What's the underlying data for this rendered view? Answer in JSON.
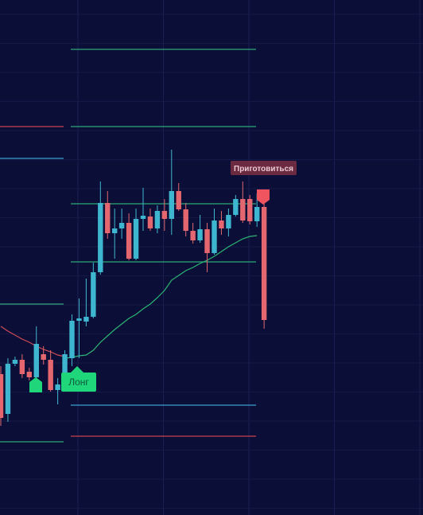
{
  "chart_data": {
    "type": "candlestick",
    "ylim": [
      0,
      647
    ],
    "up_color": "#3fb6cf",
    "down_color": "#e4676f",
    "open": [
      177,
      127,
      190,
      195,
      180,
      173,
      202,
      195,
      157,
      162,
      197,
      244,
      243,
      249,
      305,
      392,
      354,
      360,
      367,
      322,
      372,
      375,
      360,
      382,
      372,
      407,
      384,
      357,
      345,
      359,
      329,
      370,
      360,
      377,
      397,
      397,
      369,
      387
    ],
    "high": [
      187,
      197,
      199,
      202,
      185,
      237,
      212,
      207,
      172,
      207,
      252,
      272,
      297,
      317,
      419,
      407,
      385,
      385,
      379,
      385,
      411,
      385,
      389,
      397,
      459,
      417,
      392,
      367,
      377,
      367,
      385,
      382,
      385,
      402,
      419,
      402,
      404,
      392
    ],
    "low": [
      112,
      117,
      187,
      172,
      169,
      167,
      189,
      155,
      139,
      157,
      187,
      197,
      237,
      247,
      302,
      347,
      322,
      347,
      320,
      320,
      357,
      357,
      354,
      357,
      352,
      382,
      350,
      341,
      342,
      305,
      327,
      352,
      350,
      375,
      367,
      365,
      362,
      234
    ],
    "close": [
      122,
      190,
      195,
      177,
      173,
      215,
      195,
      157,
      164,
      202,
      244,
      247,
      249,
      305,
      392,
      354,
      360,
      367,
      322,
      372,
      376,
      360,
      382,
      372,
      407,
      384,
      357,
      345,
      359,
      329,
      370,
      360,
      377,
      397,
      370,
      369,
      387,
      245
    ],
    "series": [
      {
        "color": "#d04a55",
        "values": [
          237,
          231,
          226,
          221,
          217,
          212,
          208,
          205,
          201,
          199,
          null,
          null,
          null,
          null,
          null,
          null,
          null,
          null,
          null,
          null,
          null,
          null,
          null,
          null,
          null,
          null,
          null,
          null,
          null,
          null,
          null,
          null,
          null,
          null,
          null,
          null,
          null,
          null
        ]
      },
      {
        "color": "#2bb673",
        "values": [
          null,
          null,
          null,
          null,
          null,
          null,
          null,
          null,
          null,
          197,
          198,
          200,
          201,
          207,
          217,
          225,
          233,
          240,
          247,
          252,
          259,
          265,
          273,
          282,
          295,
          301,
          307,
          311,
          316,
          320,
          325,
          331,
          337,
          342,
          347,
          350,
          351,
          null
        ]
      }
    ],
    "levels": [
      {
        "value": 585,
        "color": "#2ea87a",
        "side": "right"
      },
      {
        "value": 488,
        "color": "#2ea87a",
        "side": "right"
      },
      {
        "value": 391,
        "color": "#2ea87a",
        "side": "right"
      },
      {
        "value": 318,
        "color": "#2ea87a",
        "side": "right"
      },
      {
        "value": 138,
        "color": "#3a9fd0",
        "side": "right"
      },
      {
        "value": 99,
        "color": "#c8404f",
        "side": "right"
      },
      {
        "value": 488,
        "color": "#c8404f",
        "side": "left"
      },
      {
        "value": 448,
        "color": "#3a9fd0",
        "side": "left"
      },
      {
        "value": 265,
        "color": "#2ea87a",
        "side": "left"
      },
      {
        "value": 92,
        "color": "#2ea87a",
        "side": "left"
      }
    ],
    "annotations": [
      "Лонг",
      "Приготовиться"
    ]
  }
}
